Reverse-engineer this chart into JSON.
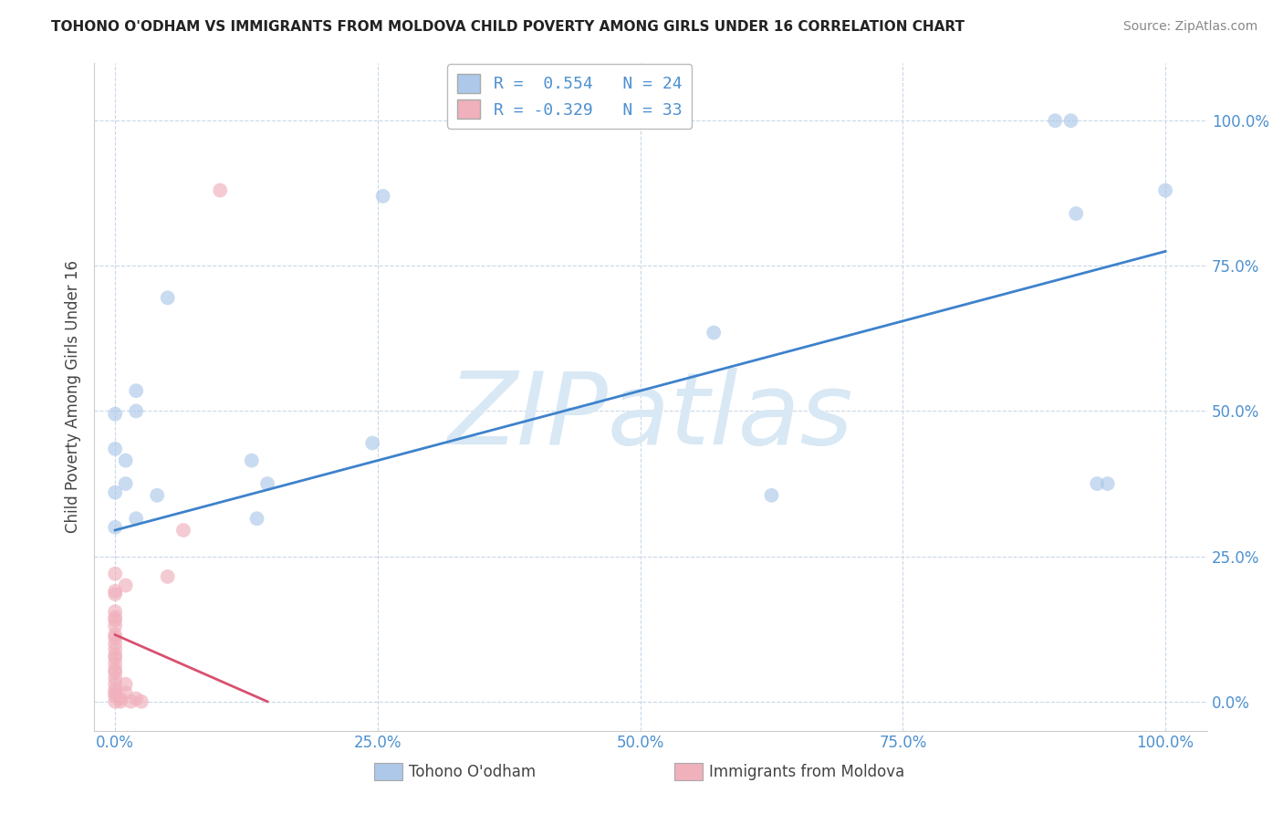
{
  "title": "TOHONO O'ODHAM VS IMMIGRANTS FROM MOLDOVA CHILD POVERTY AMONG GIRLS UNDER 16 CORRELATION CHART",
  "source": "Source: ZipAtlas.com",
  "ylabel": "Child Poverty Among Girls Under 16",
  "background_color": "#ffffff",
  "grid_color": "#c8d8e8",
  "watermark": "ZIPatlas",
  "legend_line1": "R =  0.554   N = 24",
  "legend_line2": "R = -0.329   N = 33",
  "legend_labels": [
    "Tohono O'odham",
    "Immigrants from Moldova"
  ],
  "blue_scatter": [
    [
      0.0,
      0.36
    ],
    [
      0.0,
      0.3
    ],
    [
      0.0,
      0.495
    ],
    [
      0.0,
      0.435
    ],
    [
      0.01,
      0.415
    ],
    [
      0.01,
      0.375
    ],
    [
      0.02,
      0.5
    ],
    [
      0.02,
      0.535
    ],
    [
      0.02,
      0.315
    ],
    [
      0.04,
      0.355
    ],
    [
      0.05,
      0.695
    ],
    [
      0.13,
      0.415
    ],
    [
      0.135,
      0.315
    ],
    [
      0.145,
      0.375
    ],
    [
      0.245,
      0.445
    ],
    [
      0.255,
      0.87
    ],
    [
      0.57,
      0.635
    ],
    [
      0.625,
      0.355
    ],
    [
      0.895,
      1.0
    ],
    [
      0.91,
      1.0
    ],
    [
      0.915,
      0.84
    ],
    [
      0.935,
      0.375
    ],
    [
      0.945,
      0.375
    ],
    [
      1.0,
      0.88
    ]
  ],
  "pink_scatter": [
    [
      0.0,
      0.0
    ],
    [
      0.0,
      0.01
    ],
    [
      0.0,
      0.015
    ],
    [
      0.0,
      0.02
    ],
    [
      0.0,
      0.03
    ],
    [
      0.0,
      0.04
    ],
    [
      0.0,
      0.05
    ],
    [
      0.0,
      0.055
    ],
    [
      0.0,
      0.065
    ],
    [
      0.0,
      0.075
    ],
    [
      0.0,
      0.08
    ],
    [
      0.0,
      0.09
    ],
    [
      0.0,
      0.1
    ],
    [
      0.0,
      0.11
    ],
    [
      0.0,
      0.115
    ],
    [
      0.0,
      0.13
    ],
    [
      0.0,
      0.14
    ],
    [
      0.0,
      0.145
    ],
    [
      0.0,
      0.155
    ],
    [
      0.0,
      0.185
    ],
    [
      0.0,
      0.19
    ],
    [
      0.0,
      0.22
    ],
    [
      0.005,
      0.0
    ],
    [
      0.005,
      0.005
    ],
    [
      0.01,
      0.015
    ],
    [
      0.01,
      0.03
    ],
    [
      0.01,
      0.2
    ],
    [
      0.015,
      0.0
    ],
    [
      0.02,
      0.005
    ],
    [
      0.025,
      0.0
    ],
    [
      0.05,
      0.215
    ],
    [
      0.065,
      0.295
    ],
    [
      0.1,
      0.88
    ]
  ],
  "blue_line": [
    [
      0.0,
      0.295
    ],
    [
      1.0,
      0.775
    ]
  ],
  "pink_line": [
    [
      0.0,
      0.115
    ],
    [
      0.145,
      0.0
    ]
  ],
  "xlim": [
    -0.02,
    1.04
  ],
  "ylim": [
    -0.05,
    1.1
  ],
  "xticks": [
    0.0,
    0.25,
    0.5,
    0.75,
    1.0
  ],
  "yticks": [
    0.0,
    0.25,
    0.5,
    0.75,
    1.0
  ],
  "xticklabels": [
    "0.0%",
    "25.0%",
    "50.0%",
    "75.0%",
    "100.0%"
  ],
  "yticklabels": [
    "0.0%",
    "25.0%",
    "50.0%",
    "75.0%",
    "100.0%"
  ],
  "blue_color": "#adc8e8",
  "pink_color": "#f0b0bc",
  "blue_line_color": "#3d82cc",
  "pink_line_color": "#d85070",
  "dot_size": 130,
  "dot_alpha": 0.65,
  "title_color": "#222222",
  "axis_label_color": "#444444",
  "tick_label_color": "#4d90d0",
  "watermark_color": "#d8e8f4",
  "watermark_fontsize": 80,
  "legend_color": "#4d90d0",
  "legend_box_color_blue": "#adc8e8",
  "legend_box_color_pink": "#f0b0bc"
}
